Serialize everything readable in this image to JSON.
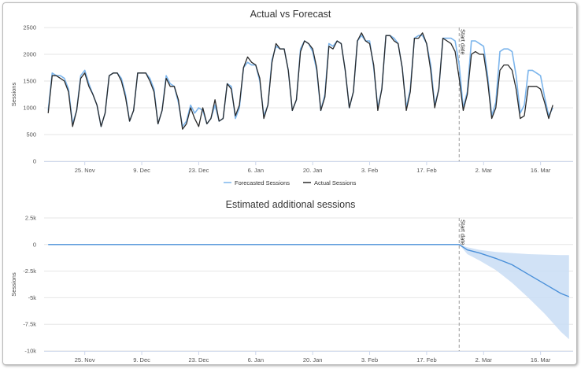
{
  "chart_data": [
    {
      "type": "line",
      "title": "Actual vs Forecast",
      "ylabel": "Sessions",
      "xlabel": "",
      "ylim": [
        0,
        2500
      ],
      "yticks": [
        0,
        500,
        1000,
        1500,
        2000,
        2500
      ],
      "xlim": [
        "2019-11-15",
        "2020-03-24"
      ],
      "xticks": [
        {
          "date": "2019-11-25",
          "label": "25. Nov"
        },
        {
          "date": "2019-12-09",
          "label": "9. Dec"
        },
        {
          "date": "2019-12-23",
          "label": "23. Dec"
        },
        {
          "date": "2020-01-06",
          "label": "6. Jan"
        },
        {
          "date": "2020-01-20",
          "label": "20. Jan"
        },
        {
          "date": "2020-02-03",
          "label": "3. Feb"
        },
        {
          "date": "2020-02-17",
          "label": "17. Feb"
        },
        {
          "date": "2020-03-02",
          "label": "2. Mar"
        },
        {
          "date": "2020-03-16",
          "label": "16. Mar"
        }
      ],
      "grid": true,
      "legend_position": "bottom-center",
      "marker": {
        "date": "2020-02-25",
        "label": "Start date"
      },
      "x_start": "2019-11-16",
      "series": [
        {
          "name": "Forecasted Sessions",
          "color": "#7cb5ec",
          "values": [
            950,
            1650,
            1600,
            1600,
            1550,
            1350,
            700,
            950,
            1600,
            1700,
            1450,
            1250,
            1050,
            650,
            900,
            1600,
            1650,
            1650,
            1550,
            1250,
            750,
            950,
            1650,
            1650,
            1650,
            1550,
            1350,
            700,
            950,
            1600,
            1450,
            1400,
            1100,
            650,
            750,
            1050,
            900,
            1000,
            950,
            700,
            800,
            1050,
            750,
            800,
            1450,
            1400,
            800,
            1000,
            1750,
            1850,
            1800,
            1800,
            1500,
            850,
            1050,
            1900,
            2150,
            2100,
            2100,
            1700,
            950,
            1150,
            2100,
            2250,
            2200,
            2050,
            1700,
            950,
            1250,
            2200,
            2150,
            2250,
            2200,
            1700,
            1000,
            1300,
            2250,
            2350,
            2250,
            2250,
            1750,
            1000,
            1350,
            2350,
            2350,
            2300,
            2200,
            1750,
            1000,
            1350,
            2300,
            2350,
            2350,
            2200,
            1800,
            1050,
            1350,
            2300,
            2300,
            2300,
            2250,
            1800,
            1000,
            1300,
            2250,
            2250,
            2200,
            2150,
            1600,
            850,
            1100,
            2050,
            2100,
            2100,
            2050,
            1600,
            900,
            1050,
            1700,
            1700,
            1650,
            1600,
            1200,
            850,
            1000
          ]
        },
        {
          "name": "Actual Sessions",
          "color": "#2b2b2b",
          "values": [
            900,
            1600,
            1600,
            1550,
            1500,
            1300,
            650,
            950,
            1550,
            1650,
            1400,
            1250,
            1050,
            650,
            900,
            1600,
            1650,
            1650,
            1500,
            1200,
            750,
            950,
            1650,
            1650,
            1650,
            1500,
            1300,
            700,
            950,
            1550,
            1400,
            1400,
            1150,
            600,
            700,
            1000,
            800,
            650,
            1000,
            700,
            800,
            1150,
            750,
            800,
            1450,
            1350,
            850,
            1050,
            1750,
            1950,
            1850,
            1800,
            1550,
            800,
            1050,
            1850,
            2200,
            2100,
            2100,
            1700,
            950,
            1150,
            2050,
            2250,
            2200,
            2100,
            1750,
            950,
            1200,
            2150,
            2100,
            2250,
            2200,
            1700,
            1000,
            1300,
            2250,
            2400,
            2250,
            2200,
            1800,
            950,
            1350,
            2350,
            2350,
            2250,
            2200,
            1750,
            950,
            1300,
            2300,
            2300,
            2400,
            2200,
            1700,
            1000,
            1350,
            2300,
            2250,
            2200,
            2050,
            1550,
            950,
            1250,
            2000,
            2050,
            2000,
            2000,
            1500,
            800,
            1000,
            1700,
            1800,
            1800,
            1700,
            1350,
            800,
            850,
            1400,
            1400,
            1400,
            1350,
            1100,
            800,
            1050
          ]
        }
      ]
    },
    {
      "type": "area",
      "title": "Estimated additional sessions",
      "ylabel": "Sessions",
      "xlabel": "",
      "ylim": [
        -10000,
        2500
      ],
      "yticks": [
        {
          "value": 2500,
          "label": "2.5k"
        },
        {
          "value": 0,
          "label": "0"
        },
        {
          "value": -2500,
          "label": "-2.5k"
        },
        {
          "value": -5000,
          "label": "-5k"
        },
        {
          "value": -7500,
          "label": "-7.5k"
        },
        {
          "value": -10000,
          "label": "-10k"
        }
      ],
      "xlim": [
        "2019-11-15",
        "2020-03-24"
      ],
      "xticks": [
        {
          "date": "2019-11-25",
          "label": "25. Nov"
        },
        {
          "date": "2019-12-09",
          "label": "9. Dec"
        },
        {
          "date": "2019-12-23",
          "label": "23. Dec"
        },
        {
          "date": "2020-01-06",
          "label": "6. Jan"
        },
        {
          "date": "2020-01-20",
          "label": "20. Jan"
        },
        {
          "date": "2020-02-03",
          "label": "3. Feb"
        },
        {
          "date": "2020-02-17",
          "label": "17. Feb"
        },
        {
          "date": "2020-03-02",
          "label": "2. Mar"
        },
        {
          "date": "2020-03-16",
          "label": "16. Mar"
        }
      ],
      "grid": true,
      "marker": {
        "date": "2020-02-25",
        "label": "Start date"
      },
      "line_color": "#4a90d9",
      "band_color": "#c9ddf4",
      "series": [
        {
          "x": "2019-11-16",
          "y": 0,
          "lower": 0,
          "upper": 0
        },
        {
          "x": "2020-02-25",
          "y": 0,
          "lower": 0,
          "upper": 0
        },
        {
          "x": "2020-02-27",
          "y": -500,
          "lower": -900,
          "upper": -250
        },
        {
          "x": "2020-03-01",
          "y": -800,
          "lower": -1500,
          "upper": -500
        },
        {
          "x": "2020-03-05",
          "y": -1300,
          "lower": -2400,
          "upper": -700
        },
        {
          "x": "2020-03-09",
          "y": -1900,
          "lower": -3600,
          "upper": -800
        },
        {
          "x": "2020-03-13",
          "y": -2800,
          "lower": -5000,
          "upper": -900
        },
        {
          "x": "2020-03-17",
          "y": -3700,
          "lower": -6500,
          "upper": -950
        },
        {
          "x": "2020-03-21",
          "y": -4600,
          "lower": -8200,
          "upper": -1000
        },
        {
          "x": "2020-03-23",
          "y": -4900,
          "lower": -8900,
          "upper": -1000
        }
      ]
    }
  ]
}
